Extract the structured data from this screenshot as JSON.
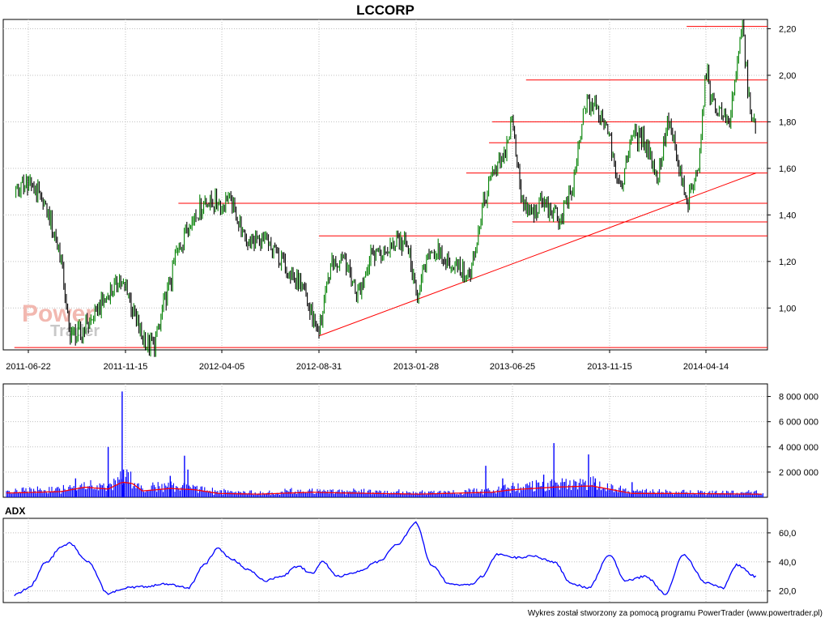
{
  "title": "LCCORP",
  "footer": "Wykres został stworzony za pomocą programu PowerTrader (www.powertrader.pl)",
  "watermark": {
    "line1": "Power",
    "line2": "Trader"
  },
  "colors": {
    "price": "#008000",
    "candle_dark": "#000000",
    "support": "#ff0000",
    "volume": "#0000ff",
    "volume_avg": "#ff0000",
    "adx": "#0000ff",
    "grid": "#c0c0c0"
  },
  "chart_data": [
    {
      "type": "line",
      "panel": "price",
      "title": "LCCORP",
      "x_tick_labels": [
        "2011-06-22",
        "2011-11-15",
        "2012-04-05",
        "2012-08-31",
        "2013-01-28",
        "2013-06-25",
        "2013-11-15",
        "2014-04-14"
      ],
      "y_tick_labels": [
        "1,00",
        "1,20",
        "1,40",
        "1,60",
        "1,80",
        "2,00",
        "2,20"
      ],
      "ylim": [
        0.82,
        2.24
      ],
      "grid": true,
      "series": [
        {
          "x": [
            "2011-06-01",
            "2011-06-22",
            "2011-07-20",
            "2011-08-10",
            "2011-08-22",
            "2011-09-10",
            "2011-10-01",
            "2011-10-20",
            "2011-11-01",
            "2011-11-15",
            "2011-12-10",
            "2011-12-28",
            "2012-01-10",
            "2012-01-31",
            "2012-02-20",
            "2012-03-10",
            "2012-03-25",
            "2012-04-05",
            "2012-04-15",
            "2012-05-10",
            "2012-06-10",
            "2012-07-10",
            "2012-08-05",
            "2012-08-31",
            "2012-09-20",
            "2012-10-10",
            "2012-10-30",
            "2012-11-20",
            "2012-12-10",
            "2012-12-30",
            "2013-01-15",
            "2013-01-28",
            "2013-02-20",
            "2013-03-10",
            "2013-04-01",
            "2013-04-20",
            "2013-05-10",
            "2013-05-25",
            "2013-06-10",
            "2013-06-25",
            "2013-07-10",
            "2013-07-25",
            "2013-08-10",
            "2013-09-01",
            "2013-09-20",
            "2013-10-10",
            "2013-10-25",
            "2013-11-15",
            "2013-12-01",
            "2013-12-20",
            "2014-01-10",
            "2014-01-30",
            "2014-02-15",
            "2014-03-01",
            "2014-03-15",
            "2014-04-01",
            "2014-04-14",
            "2014-05-01",
            "2014-05-20",
            "2014-06-10",
            "2014-06-20",
            "2014-07-01"
          ],
          "y": [
            1.5,
            1.54,
            1.43,
            1.21,
            0.9,
            0.89,
            0.98,
            1.05,
            1.1,
            1.1,
            0.86,
            0.84,
            1.0,
            1.25,
            1.38,
            1.45,
            1.46,
            1.44,
            1.49,
            1.3,
            1.28,
            1.2,
            1.08,
            0.89,
            1.2,
            1.22,
            1.06,
            1.24,
            1.22,
            1.3,
            1.26,
            1.05,
            1.26,
            1.21,
            1.19,
            1.12,
            1.44,
            1.56,
            1.62,
            1.81,
            1.44,
            1.4,
            1.45,
            1.38,
            1.48,
            1.88,
            1.86,
            1.76,
            1.49,
            1.75,
            1.71,
            1.56,
            1.82,
            1.61,
            1.45,
            1.59,
            2.0,
            1.86,
            1.8,
            2.21,
            1.9,
            1.73
          ]
        }
      ],
      "support_levels": [
        0.83,
        1.31,
        1.37,
        1.45,
        1.58,
        1.71,
        1.8,
        1.98,
        2.21
      ],
      "trendline": {
        "x": [
          "2012-08-31",
          "2014-07-01"
        ],
        "y": [
          0.88,
          1.58
        ]
      }
    },
    {
      "type": "bar",
      "panel": "volume",
      "y_tick_labels": [
        "2 000 000",
        "4 000 000",
        "6 000 000",
        "8 000 000"
      ],
      "ylim": [
        0,
        9000000
      ],
      "spikes": [
        {
          "x": "2011-09-01",
          "value": 1500000
        },
        {
          "x": "2011-10-20",
          "value": 4000000
        },
        {
          "x": "2011-11-10",
          "value": 8400000
        },
        {
          "x": "2011-11-12",
          "value": 2200000
        },
        {
          "x": "2012-01-20",
          "value": 1700000
        },
        {
          "x": "2012-02-10",
          "value": 3300000
        },
        {
          "x": "2012-02-15",
          "value": 2200000
        },
        {
          "x": "2013-05-15",
          "value": 2500000
        },
        {
          "x": "2013-06-10",
          "value": 1500000
        },
        {
          "x": "2013-08-10",
          "value": 1800000
        },
        {
          "x": "2013-08-25",
          "value": 4300000
        },
        {
          "x": "2013-10-15",
          "value": 3400000
        },
        {
          "x": "2013-10-25",
          "value": 1500000
        },
        {
          "x": "2013-12-20",
          "value": 1200000
        }
      ],
      "average": {
        "x": [
          "2011-06-01",
          "2011-08-10",
          "2011-09-15",
          "2011-10-20",
          "2011-11-10",
          "2011-11-25",
          "2011-12-10",
          "2012-01-20",
          "2012-02-25",
          "2012-04-01",
          "2012-06-01",
          "2012-08-20",
          "2012-10-01",
          "2013-02-01",
          "2013-05-25",
          "2013-06-25",
          "2013-08-25",
          "2013-10-20",
          "2013-12-20",
          "2014-03-01",
          "2014-07-01"
        ],
        "y": [
          350000,
          450000,
          800000,
          650000,
          1200000,
          1100000,
          500000,
          700000,
          600000,
          300000,
          250000,
          400000,
          350000,
          250000,
          400000,
          600000,
          800000,
          900000,
          300000,
          300000,
          250000
        ]
      }
    },
    {
      "type": "line",
      "panel": "indicator",
      "title": "ADX",
      "y_tick_labels": [
        "20,0",
        "40,0",
        "60,0"
      ],
      "ylim": [
        12,
        70
      ],
      "series": [
        {
          "name": "ADX",
          "x": [
            "2011-06-01",
            "2011-06-22",
            "2011-07-20",
            "2011-08-10",
            "2011-08-22",
            "2011-09-20",
            "2011-10-20",
            "2011-11-15",
            "2011-12-15",
            "2012-01-15",
            "2012-02-15",
            "2012-03-10",
            "2012-03-30",
            "2012-04-20",
            "2012-05-15",
            "2012-06-10",
            "2012-07-05",
            "2012-07-30",
            "2012-08-20",
            "2012-09-05",
            "2012-09-30",
            "2012-10-30",
            "2012-11-30",
            "2012-12-30",
            "2013-01-28",
            "2013-02-20",
            "2013-03-20",
            "2013-04-20",
            "2013-05-10",
            "2013-06-01",
            "2013-07-01",
            "2013-07-25",
            "2013-08-25",
            "2013-09-20",
            "2013-10-15",
            "2013-11-15",
            "2013-12-10",
            "2014-01-10",
            "2014-02-10",
            "2014-03-10",
            "2014-04-14",
            "2014-05-10",
            "2014-06-01",
            "2014-07-01"
          ],
          "y": [
            17,
            22,
            40,
            50,
            53,
            40,
            18,
            22,
            23,
            25,
            22,
            38,
            49,
            42,
            35,
            27,
            30,
            37,
            32,
            40,
            30,
            33,
            40,
            52,
            67,
            38,
            25,
            24,
            30,
            45,
            43,
            44,
            40,
            25,
            22,
            45,
            27,
            30,
            18,
            45,
            26,
            22,
            38,
            30
          ]
        }
      ]
    }
  ]
}
